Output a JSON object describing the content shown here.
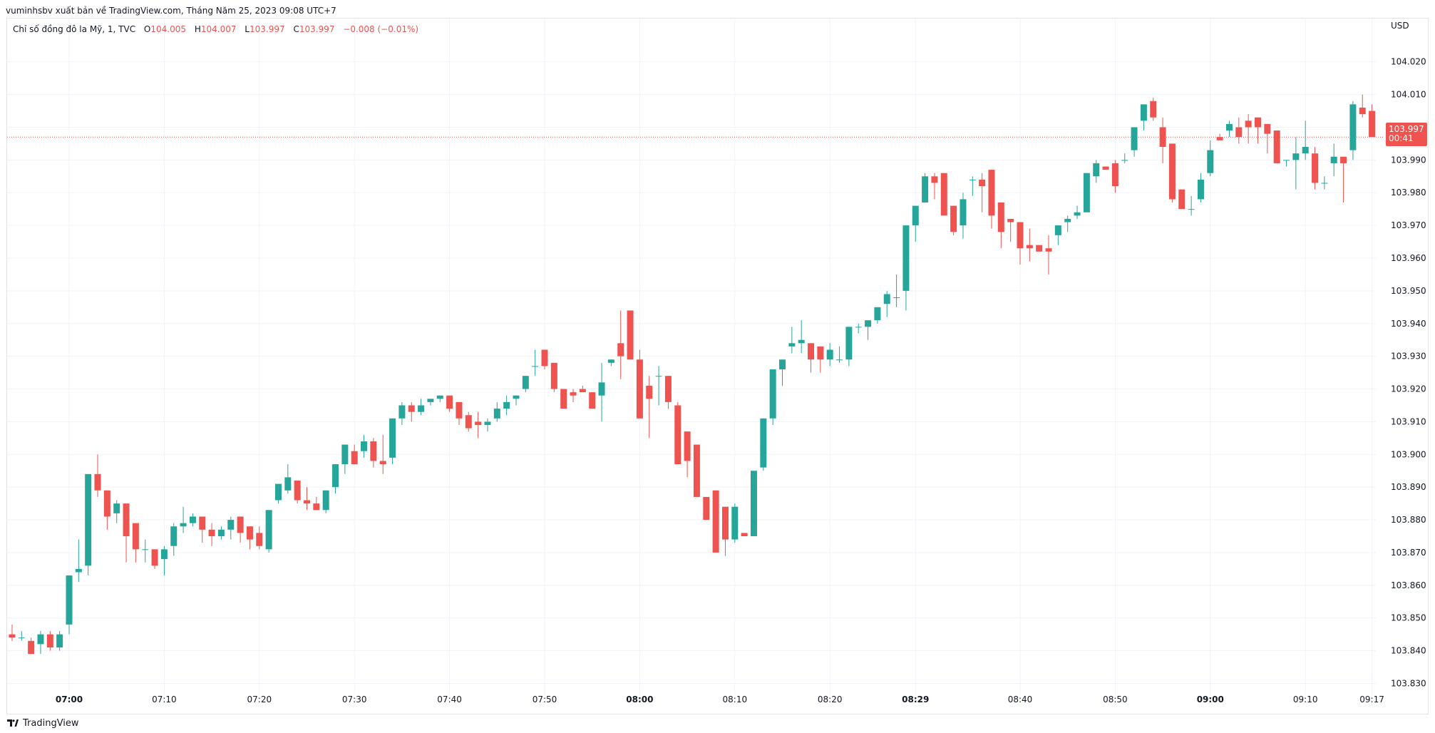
{
  "attribution": "vuminhsbv xuất bản về TradingView.com, Tháng Năm 25, 2023 09:08 UTC+7",
  "legend": {
    "symbol": "Chỉ số đồng đô la Mỹ, 1, TVC",
    "o_label": "O",
    "o_value": "104.005",
    "h_label": "H",
    "h_value": "104.007",
    "l_label": "L",
    "l_value": "103.997",
    "c_label": "C",
    "c_value": "103.997",
    "change": "−0.008 (−0.01%)"
  },
  "current_price": {
    "price": "103.997",
    "countdown": "00:41"
  },
  "footer": {
    "brand": "TradingView"
  },
  "colors": {
    "up": "#26a69a",
    "down": "#ef5350",
    "grid": "#f0f3fa",
    "axis_text": "#131722"
  },
  "chart_data": {
    "type": "candlestick",
    "currency_label": "USD",
    "ylim": [
      103.824,
      104.028
    ],
    "y_ticks": [
      "103.830",
      "103.840",
      "103.850",
      "103.860",
      "103.870",
      "103.880",
      "103.890",
      "103.900",
      "103.910",
      "103.920",
      "103.930",
      "103.940",
      "103.950",
      "103.960",
      "103.970",
      "103.980",
      "103.990",
      "104.000",
      "104.010",
      "104.020"
    ],
    "x_ticks": [
      {
        "label": "07:00",
        "minute": 0,
        "bold": true
      },
      {
        "label": "07:10",
        "minute": 10,
        "bold": false
      },
      {
        "label": "07:20",
        "minute": 20,
        "bold": false
      },
      {
        "label": "07:30",
        "minute": 30,
        "bold": false
      },
      {
        "label": "07:40",
        "minute": 40,
        "bold": false
      },
      {
        "label": "07:50",
        "minute": 50,
        "bold": false
      },
      {
        "label": "08:00",
        "minute": 60,
        "bold": true
      },
      {
        "label": "08:10",
        "minute": 70,
        "bold": false
      },
      {
        "label": "08:20",
        "minute": 80,
        "bold": false
      },
      {
        "label": "08:29",
        "minute": 89,
        "bold": true
      },
      {
        "label": "08:40",
        "minute": 100,
        "bold": false
      },
      {
        "label": "08:50",
        "minute": 110,
        "bold": false
      },
      {
        "label": "09:00",
        "minute": 120,
        "bold": true
      },
      {
        "label": "09:10",
        "minute": 130,
        "bold": false
      },
      {
        "label": "09:17",
        "minute": 137,
        "bold": false
      }
    ],
    "first_minute": -6,
    "candles": [
      [
        103.845,
        103.848,
        103.843,
        103.844
      ],
      [
        103.844,
        103.846,
        103.843,
        103.844
      ],
      [
        103.843,
        103.844,
        103.839,
        103.839
      ],
      [
        103.842,
        103.846,
        103.839,
        103.845
      ],
      [
        103.845,
        103.846,
        103.84,
        103.841
      ],
      [
        103.841,
        103.846,
        103.84,
        103.845
      ],
      [
        103.848,
        103.863,
        103.845,
        103.863
      ],
      [
        103.864,
        103.874,
        103.861,
        103.865
      ],
      [
        103.866,
        103.894,
        103.863,
        103.894
      ],
      [
        103.894,
        103.9,
        103.887,
        103.889
      ],
      [
        103.889,
        103.889,
        103.877,
        103.881
      ],
      [
        103.882,
        103.886,
        103.879,
        103.885
      ],
      [
        103.885,
        103.885,
        103.867,
        103.875
      ],
      [
        103.879,
        103.879,
        103.867,
        103.871
      ],
      [
        103.871,
        103.874,
        103.867,
        103.871
      ],
      [
        103.871,
        103.871,
        103.865,
        103.866
      ],
      [
        103.868,
        103.872,
        103.863,
        103.871
      ],
      [
        103.872,
        103.879,
        103.869,
        103.878
      ],
      [
        103.878,
        103.884,
        103.876,
        103.879
      ],
      [
        103.879,
        103.882,
        103.878,
        103.881
      ],
      [
        103.881,
        103.881,
        103.873,
        103.877
      ],
      [
        103.877,
        103.879,
        103.872,
        103.875
      ],
      [
        103.875,
        103.878,
        103.874,
        103.877
      ],
      [
        103.877,
        103.881,
        103.874,
        103.88
      ],
      [
        103.881,
        103.881,
        103.873,
        103.876
      ],
      [
        103.878,
        103.878,
        103.871,
        103.874
      ],
      [
        103.876,
        103.878,
        103.871,
        103.872
      ],
      [
        103.871,
        103.883,
        103.87,
        103.883
      ],
      [
        103.886,
        103.891,
        103.885,
        103.891
      ],
      [
        103.889,
        103.897,
        103.888,
        103.893
      ],
      [
        103.892,
        103.892,
        103.885,
        103.886
      ],
      [
        103.886,
        103.89,
        103.883,
        103.885
      ],
      [
        103.885,
        103.887,
        103.883,
        103.883
      ],
      [
        103.883,
        103.889,
        103.882,
        103.889
      ],
      [
        103.89,
        103.897,
        103.888,
        103.897
      ],
      [
        103.897,
        103.903,
        103.894,
        103.903
      ],
      [
        103.901,
        103.903,
        103.897,
        103.897
      ],
      [
        103.901,
        103.906,
        103.899,
        103.904
      ],
      [
        103.904,
        103.905,
        103.896,
        103.898
      ],
      [
        103.898,
        103.906,
        103.894,
        103.897
      ],
      [
        103.899,
        103.911,
        103.897,
        103.911
      ],
      [
        103.911,
        103.916,
        103.909,
        103.915
      ],
      [
        103.915,
        103.916,
        103.91,
        103.913
      ],
      [
        103.913,
        103.917,
        103.912,
        103.915
      ],
      [
        103.916,
        103.917,
        103.915,
        103.917
      ],
      [
        103.917,
        103.918,
        103.916,
        103.918
      ],
      [
        103.918,
        103.918,
        103.913,
        103.914
      ],
      [
        103.916,
        103.916,
        103.909,
        103.911
      ],
      [
        103.912,
        103.913,
        103.907,
        103.908
      ],
      [
        103.91,
        103.913,
        103.905,
        103.909
      ],
      [
        103.909,
        103.911,
        103.907,
        103.91
      ],
      [
        103.911,
        103.916,
        103.91,
        103.914
      ],
      [
        103.914,
        103.918,
        103.912,
        103.916
      ],
      [
        103.917,
        103.918,
        103.915,
        103.918
      ],
      [
        103.92,
        103.924,
        103.919,
        103.924
      ],
      [
        103.927,
        103.932,
        103.924,
        103.927
      ],
      [
        103.932,
        103.932,
        103.926,
        103.927
      ],
      [
        103.928,
        103.928,
        103.919,
        103.92
      ],
      [
        103.92,
        103.92,
        103.914,
        103.914
      ],
      [
        103.919,
        103.92,
        103.916,
        103.918
      ],
      [
        103.92,
        103.921,
        103.919,
        103.919
      ],
      [
        103.919,
        103.919,
        103.914,
        103.914
      ],
      [
        103.918,
        103.928,
        103.91,
        103.922
      ],
      [
        103.928,
        103.929,
        103.927,
        103.929
      ],
      [
        103.934,
        103.944,
        103.923,
        103.93
      ],
      [
        103.944,
        103.944,
        103.929,
        103.929
      ],
      [
        103.929,
        103.932,
        103.911,
        103.911
      ],
      [
        103.921,
        103.924,
        103.905,
        103.917
      ],
      [
        103.924,
        103.927,
        103.915,
        103.924
      ],
      [
        103.924,
        103.924,
        103.914,
        103.916
      ],
      [
        103.915,
        103.916,
        103.897,
        103.897
      ],
      [
        103.907,
        103.907,
        103.893,
        103.898
      ],
      [
        103.903,
        103.903,
        103.887,
        103.887
      ],
      [
        103.887,
        103.887,
        103.88,
        103.88
      ],
      [
        103.889,
        103.889,
        103.87,
        103.87
      ],
      [
        103.884,
        103.884,
        103.869,
        103.874
      ],
      [
        103.874,
        103.885,
        103.873,
        103.884
      ],
      [
        103.876,
        103.876,
        103.875,
        103.875
      ],
      [
        103.875,
        103.895,
        103.875,
        103.895
      ],
      [
        103.896,
        103.911,
        103.895,
        103.911
      ],
      [
        103.911,
        103.926,
        103.909,
        103.926
      ],
      [
        103.926,
        103.929,
        103.921,
        103.929
      ],
      [
        103.933,
        103.939,
        103.931,
        103.934
      ],
      [
        103.934,
        103.941,
        103.931,
        103.935
      ],
      [
        103.934,
        103.934,
        103.925,
        103.929
      ],
      [
        103.933,
        103.933,
        103.925,
        103.929
      ],
      [
        103.929,
        103.934,
        103.927,
        103.932
      ],
      [
        103.929,
        103.933,
        103.928,
        103.929
      ],
      [
        103.929,
        103.939,
        103.927,
        103.939
      ],
      [
        103.939,
        103.94,
        103.937,
        103.939
      ],
      [
        103.939,
        103.941,
        103.935,
        103.941
      ],
      [
        103.941,
        103.945,
        103.94,
        103.945
      ],
      [
        103.946,
        103.95,
        103.942,
        103.949
      ],
      [
        103.948,
        103.955,
        103.945,
        103.948
      ],
      [
        103.95,
        103.97,
        103.944,
        103.97
      ],
      [
        103.97,
        103.976,
        103.965,
        103.976
      ],
      [
        103.977,
        103.986,
        103.977,
        103.985
      ],
      [
        103.985,
        103.986,
        103.978,
        103.983
      ],
      [
        103.986,
        103.986,
        103.975,
        103.973
      ],
      [
        103.976,
        103.976,
        103.967,
        103.968
      ],
      [
        103.97,
        103.98,
        103.966,
        103.978
      ],
      [
        103.984,
        103.985,
        103.979,
        103.984
      ],
      [
        103.984,
        103.986,
        103.974,
        103.982
      ],
      [
        103.987,
        103.987,
        103.969,
        103.973
      ],
      [
        103.977,
        103.977,
        103.963,
        103.968
      ],
      [
        103.972,
        103.972,
        103.965,
        103.971
      ],
      [
        103.971,
        103.971,
        103.958,
        103.963
      ],
      [
        103.964,
        103.969,
        103.959,
        103.963
      ],
      [
        103.964,
        103.964,
        103.962,
        103.962
      ],
      [
        103.963,
        103.967,
        103.955,
        103.962
      ],
      [
        103.967,
        103.97,
        103.964,
        103.97
      ],
      [
        103.971,
        103.973,
        103.968,
        103.972
      ],
      [
        103.973,
        103.976,
        103.972,
        103.974
      ],
      [
        103.974,
        103.986,
        103.974,
        103.986
      ],
      [
        103.985,
        103.99,
        103.983,
        103.989
      ],
      [
        103.988,
        103.988,
        103.987,
        103.987
      ],
      [
        103.989,
        103.99,
        103.98,
        103.982
      ],
      [
        103.99,
        103.992,
        103.989,
        103.99
      ],
      [
        103.993,
        104.0,
        103.991,
        104.0
      ],
      [
        104.002,
        104.007,
        103.999,
        104.007
      ],
      [
        104.008,
        104.009,
        104.002,
        104.003
      ],
      [
        104.0,
        104.003,
        103.989,
        103.994
      ],
      [
        103.995,
        103.995,
        103.977,
        103.978
      ],
      [
        103.981,
        103.981,
        103.975,
        103.975
      ],
      [
        103.975,
        103.979,
        103.973,
        103.975
      ],
      [
        103.978,
        103.986,
        103.977,
        103.984
      ],
      [
        103.986,
        103.996,
        103.985,
        103.993
      ],
      [
        103.997,
        103.998,
        103.996,
        103.996
      ],
      [
        103.999,
        104.002,
        103.997,
        104.001
      ],
      [
        104.0,
        104.003,
        103.995,
        103.997
      ],
      [
        104.002,
        104.004,
        103.995,
        104.0
      ],
      [
        104.003,
        104.003,
        103.995,
        104.0
      ],
      [
        104.001,
        104.001,
        103.992,
        103.998
      ],
      [
        103.999,
        103.999,
        103.989,
        103.989
      ],
      [
        103.99,
        103.99,
        103.988,
        103.99
      ],
      [
        103.99,
        103.997,
        103.981,
        103.992
      ],
      [
        103.992,
        104.002,
        103.99,
        103.994
      ],
      [
        103.992,
        103.994,
        103.981,
        103.983
      ],
      [
        103.983,
        103.985,
        103.981,
        103.983
      ],
      [
        103.989,
        103.995,
        103.985,
        103.991
      ],
      [
        103.991,
        103.991,
        103.977,
        103.989
      ],
      [
        103.993,
        104.008,
        103.99,
        104.007
      ],
      [
        104.006,
        104.01,
        104.003,
        104.004
      ],
      [
        104.005,
        104.007,
        103.997,
        103.997
      ]
    ]
  }
}
